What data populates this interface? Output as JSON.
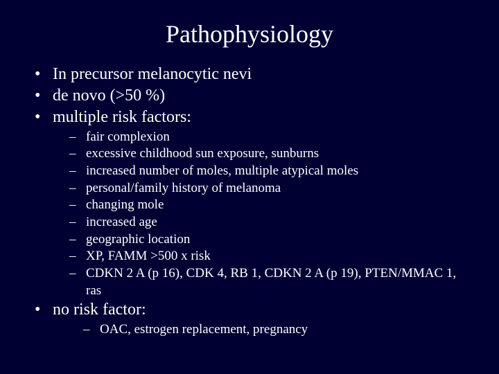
{
  "background_color": "#000033",
  "text_color": "#ffffff",
  "font_family": "Times New Roman",
  "title": "Pathophysiology",
  "title_fontsize": 36,
  "level1_fontsize": 24,
  "level2_fontsize": 19,
  "bullets": {
    "b1": "In precursor melanocytic nevi",
    "b2": "de novo (>50 %)",
    "b3": "multiple risk factors:",
    "b4": "no risk factor:"
  },
  "risk_factors": {
    "r1": "fair complexion",
    "r2": "excessive childhood sun exposure, sunburns",
    "r3": "increased number of moles, multiple atypical moles",
    "r4": "personal/family history of melanoma",
    "r5": "changing mole",
    "r6": "increased age",
    "r7": "geographic location",
    "r8": "XP, FAMM >500 x risk",
    "r9": "CDKN 2 A (p 16), CDK 4, RB 1, CDKN 2 A (p 19), PTEN/MMAC 1, ras"
  },
  "no_risk": {
    "n1": "OAC, estrogen replacement, pregnancy"
  }
}
